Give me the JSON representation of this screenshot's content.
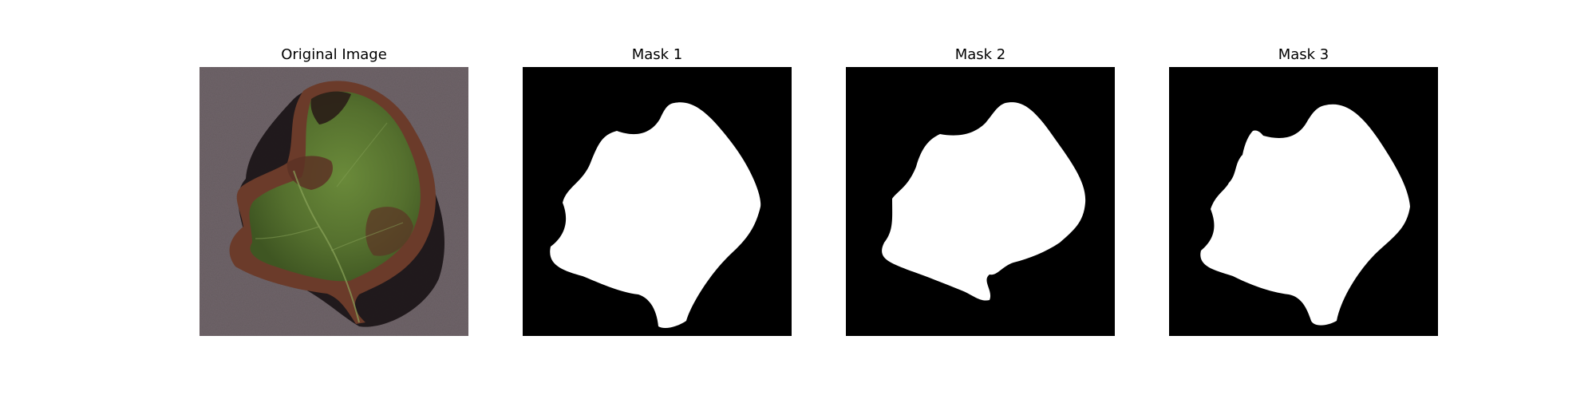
{
  "figure": {
    "panels": [
      {
        "title": "Original Image",
        "image": "leaf-photo"
      },
      {
        "title": "Mask 1",
        "image": "binary-mask"
      },
      {
        "title": "Mask 2",
        "image": "binary-mask"
      },
      {
        "title": "Mask 3",
        "image": "binary-mask"
      }
    ],
    "colors": {
      "background": "#ffffff",
      "mask_background": "#000000",
      "mask_foreground": "#ffffff",
      "photo_surface": "#6f6469",
      "leaf_green": "#55702e",
      "leaf_diseased_brown": "#6b3b2a",
      "shadow": "#1a1416"
    }
  }
}
